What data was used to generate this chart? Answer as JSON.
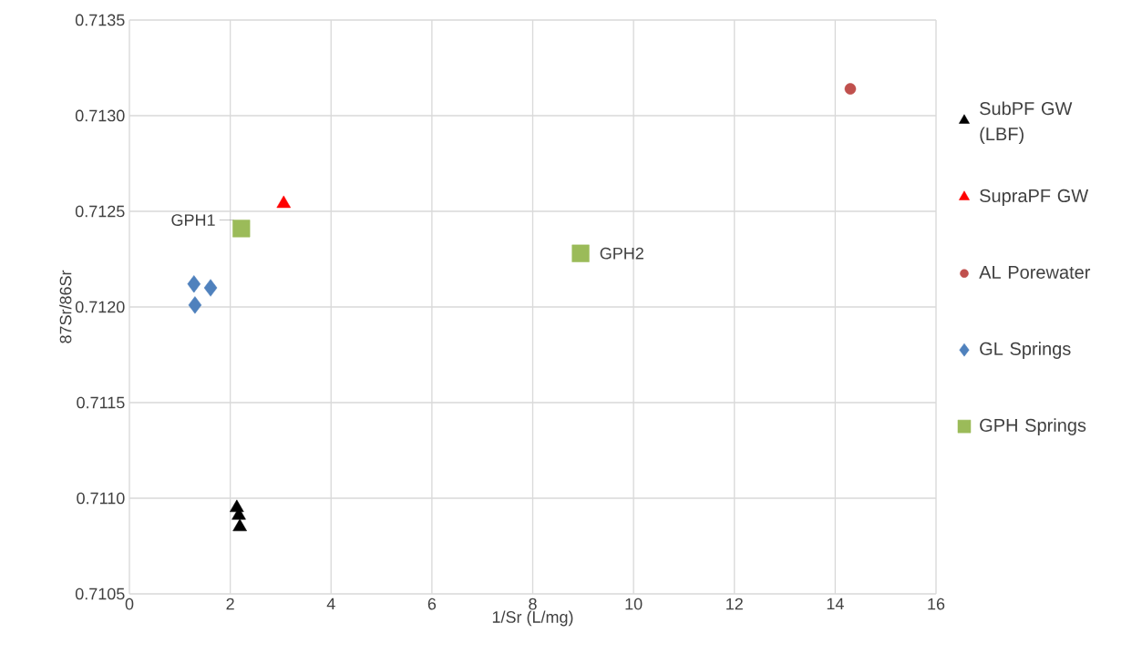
{
  "chart_data": {
    "type": "scatter",
    "xlabel": "1/Sr (L/mg)",
    "ylabel": "87Sr/86Sr",
    "xlim": [
      0,
      16
    ],
    "ylim": [
      0.7105,
      0.7135
    ],
    "xticks": [
      0,
      2,
      4,
      6,
      8,
      10,
      12,
      14,
      16
    ],
    "yticks": [
      0.7105,
      {
        "value": 0.711,
        "label": "0.7110"
      },
      0.7115,
      {
        "value": 0.712,
        "label": "0.7120"
      },
      0.7125,
      {
        "value": 0.713,
        "label": "0.7130"
      },
      0.7135
    ],
    "grid": true,
    "legend": "right",
    "series": [
      {
        "name": "SubPF GW (LBF)",
        "color": "#000000",
        "marker": "triangle",
        "x": [
          2.13,
          2.17,
          2.19
        ],
        "values": [
          0.71095,
          0.71091,
          0.71085
        ]
      },
      {
        "name": "SupraPF GW",
        "color": "#ff0000",
        "marker": "triangle",
        "x": [
          3.06
        ],
        "values": [
          0.71254
        ]
      },
      {
        "name": "AL Porewater",
        "color": "#c0504d",
        "marker": "circle",
        "x": [
          14.3
        ],
        "values": [
          0.71314
        ]
      },
      {
        "name": "GL Springs",
        "color": "#4f81bd",
        "marker": "diamond",
        "x": [
          1.28,
          1.61,
          1.3
        ],
        "values": [
          0.71212,
          0.7121,
          0.71201
        ]
      },
      {
        "name": "GPH Springs",
        "color": "#9bbb59",
        "marker": "square",
        "x": [
          2.22,
          8.95
        ],
        "values": [
          0.71241,
          0.71228
        ]
      }
    ],
    "annotations": [
      {
        "text": "GPH1",
        "x": 2.22,
        "y": 0.71241
      },
      {
        "text": "GPH2",
        "x": 8.95,
        "y": 0.71228
      }
    ]
  }
}
